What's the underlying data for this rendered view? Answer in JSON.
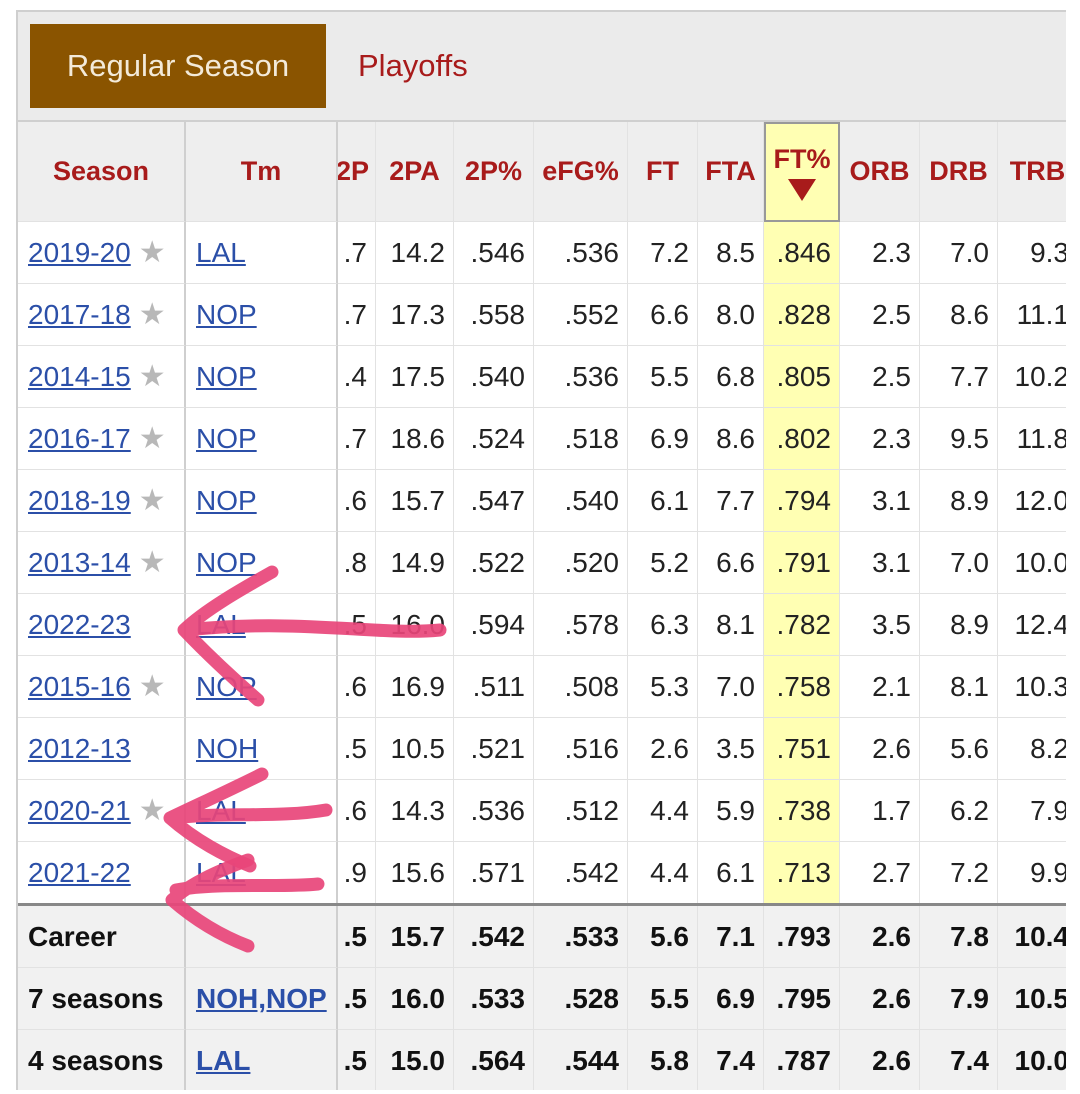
{
  "tabs": {
    "regular": "Regular Season",
    "playoffs": "Playoffs"
  },
  "columns": [
    "Season",
    "Tm",
    "2P",
    "2PA",
    "2P%",
    "eFG%",
    "FT",
    "FTA",
    "FT%",
    "ORB",
    "DRB",
    "TRB"
  ],
  "column_clipped_left_visible": "2P",
  "rows": [
    {
      "season": "2019-20",
      "star": true,
      "tm": "LAL",
      "p2": ".7",
      "p2a": "14.2",
      "p2pct": ".546",
      "efg": ".536",
      "ft": "7.2",
      "fta": "8.5",
      "ftpct": ".846",
      "orb": "2.3",
      "drb": "7.0",
      "trb": "9.3"
    },
    {
      "season": "2017-18",
      "star": true,
      "tm": "NOP",
      "p2": ".7",
      "p2a": "17.3",
      "p2pct": ".558",
      "efg": ".552",
      "ft": "6.6",
      "fta": "8.0",
      "ftpct": ".828",
      "orb": "2.5",
      "drb": "8.6",
      "trb": "11.1"
    },
    {
      "season": "2014-15",
      "star": true,
      "tm": "NOP",
      "p2": ".4",
      "p2a": "17.5",
      "p2pct": ".540",
      "efg": ".536",
      "ft": "5.5",
      "fta": "6.8",
      "ftpct": ".805",
      "orb": "2.5",
      "drb": "7.7",
      "trb": "10.2"
    },
    {
      "season": "2016-17",
      "star": true,
      "tm": "NOP",
      "p2": ".7",
      "p2a": "18.6",
      "p2pct": ".524",
      "efg": ".518",
      "ft": "6.9",
      "fta": "8.6",
      "ftpct": ".802",
      "orb": "2.3",
      "drb": "9.5",
      "trb": "11.8"
    },
    {
      "season": "2018-19",
      "star": true,
      "tm": "NOP",
      "p2": ".6",
      "p2a": "15.7",
      "p2pct": ".547",
      "efg": ".540",
      "ft": "6.1",
      "fta": "7.7",
      "ftpct": ".794",
      "orb": "3.1",
      "drb": "8.9",
      "trb": "12.0"
    },
    {
      "season": "2013-14",
      "star": true,
      "tm": "NOP",
      "p2": ".8",
      "p2a": "14.9",
      "p2pct": ".522",
      "efg": ".520",
      "ft": "5.2",
      "fta": "6.6",
      "ftpct": ".791",
      "orb": "3.1",
      "drb": "7.0",
      "trb": "10.0"
    },
    {
      "season": "2022-23",
      "star": false,
      "tm": "LAL",
      "p2": ".5",
      "p2a": "16.0",
      "p2pct": ".594",
      "efg": ".578",
      "ft": "6.3",
      "fta": "8.1",
      "ftpct": ".782",
      "orb": "3.5",
      "drb": "8.9",
      "trb": "12.4"
    },
    {
      "season": "2015-16",
      "star": true,
      "tm": "NOP",
      "p2": ".6",
      "p2a": "16.9",
      "p2pct": ".511",
      "efg": ".508",
      "ft": "5.3",
      "fta": "7.0",
      "ftpct": ".758",
      "orb": "2.1",
      "drb": "8.1",
      "trb": "10.3"
    },
    {
      "season": "2012-13",
      "star": false,
      "tm": "NOH",
      "p2": ".5",
      "p2a": "10.5",
      "p2pct": ".521",
      "efg": ".516",
      "ft": "2.6",
      "fta": "3.5",
      "ftpct": ".751",
      "orb": "2.6",
      "drb": "5.6",
      "trb": "8.2"
    },
    {
      "season": "2020-21",
      "star": true,
      "tm": "LAL",
      "p2": ".6",
      "p2a": "14.3",
      "p2pct": ".536",
      "efg": ".512",
      "ft": "4.4",
      "fta": "5.9",
      "ftpct": ".738",
      "orb": "1.7",
      "drb": "6.2",
      "trb": "7.9"
    },
    {
      "season": "2021-22",
      "star": false,
      "tm": "LAL",
      "p2": ".9",
      "p2a": "15.6",
      "p2pct": ".571",
      "efg": ".542",
      "ft": "4.4",
      "fta": "6.1",
      "ftpct": ".713",
      "orb": "2.7",
      "drb": "7.2",
      "trb": "9.9"
    }
  ],
  "totals": [
    {
      "season": "Career",
      "tm": "",
      "p2": ".5",
      "p2a": "15.7",
      "p2pct": ".542",
      "efg": ".533",
      "ft": "5.6",
      "fta": "7.1",
      "ftpct": ".793",
      "orb": "2.6",
      "drb": "7.8",
      "trb": "10.4"
    },
    {
      "season": "7 seasons",
      "tm": "NOH,NOP",
      "p2": ".5",
      "p2a": "16.0",
      "p2pct": ".533",
      "efg": ".528",
      "ft": "5.5",
      "fta": "6.9",
      "ftpct": ".795",
      "orb": "2.6",
      "drb": "7.9",
      "trb": "10.5"
    },
    {
      "season": "4 seasons",
      "tm": "LAL",
      "p2": ".5",
      "p2a": "15.0",
      "p2pct": ".564",
      "efg": ".544",
      "ft": "5.8",
      "fta": "7.4",
      "ftpct": ".787",
      "orb": "2.6",
      "drb": "7.4",
      "trb": "10.0"
    }
  ],
  "annotation": {
    "color": "#e8457a",
    "arrows_pointing_to": [
      "2022-23",
      "2020-21",
      "2021-22"
    ]
  }
}
